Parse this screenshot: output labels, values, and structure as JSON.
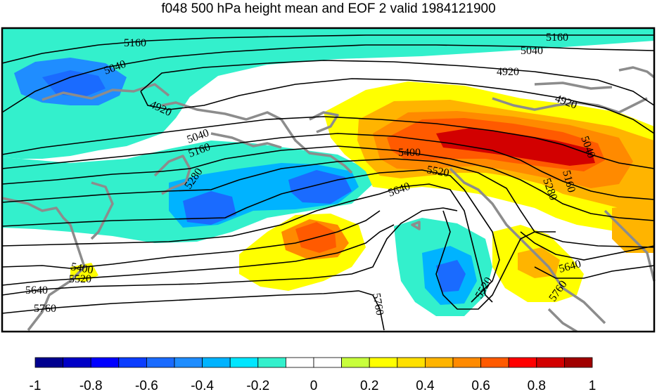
{
  "title": "f048 500 hPa height mean and EOF 2 valid 1984121900",
  "contour_labels": [
    "5160",
    "5040",
    "4920",
    "4920",
    "5160",
    "5040",
    "4920",
    "5040",
    "5160",
    "5280",
    "5400",
    "5520",
    "5640",
    "5400",
    "5520",
    "5640",
    "5760",
    "5760",
    "5520",
    "5640",
    "5760",
    "5160",
    "5280",
    "5040"
  ],
  "colorbar": {
    "ticks": [
      "-1",
      "-0.8",
      "-0.6",
      "-0.4",
      "-0.2",
      "0",
      "0.2",
      "0.4",
      "0.6",
      "0.8",
      "1"
    ],
    "colors": [
      "#00008f",
      "#0000c6",
      "#0000ff",
      "#0b3dff",
      "#1a6bff",
      "#1f8dff",
      "#00b3ff",
      "#00e6ff",
      "#33f0cc",
      "#ffffff",
      "#ffffff",
      "#c8ff3c",
      "#ffff00",
      "#ffe000",
      "#ffb400",
      "#ff8a00",
      "#ff5a00",
      "#ff0000",
      "#d20000",
      "#a00000"
    ]
  },
  "field_colors": {
    "cyan": "#33f0cc",
    "lightblue": "#00b3ff",
    "blue": "#1a6bff",
    "yellow": "#ffff00",
    "orange": "#ffb400",
    "darkorange": "#ff8a00",
    "red": "#ff5a00",
    "darkred": "#d20000",
    "coast": "#8c8c8c"
  }
}
